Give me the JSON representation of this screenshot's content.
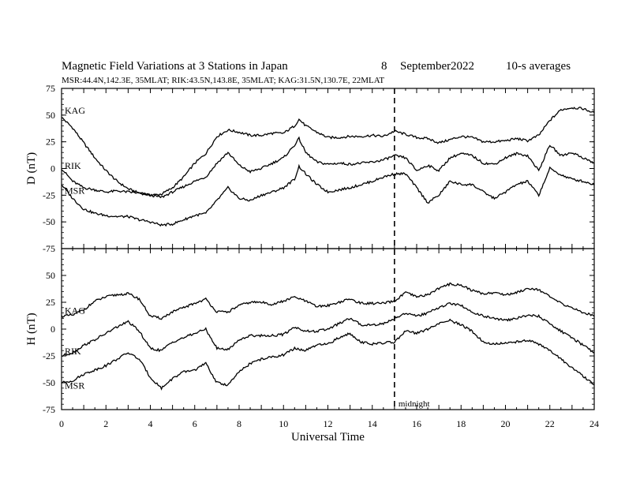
{
  "header": {
    "title": "Magnetic Field Variations at 3 Stations in Japan",
    "day": "8",
    "month": "September",
    "year": "2022",
    "averaging": "10-s averages",
    "stations_line": "MSR:44.4N,142.3E, 35MLAT;  RIK:43.5N,143.8E, 35MLAT;  KAG:31.5N,130.7E, 22MLAT"
  },
  "chart_data": {
    "type": "line",
    "xlabel": "Universal Time",
    "xlim": [
      0,
      24
    ],
    "xticks": [
      0,
      2,
      4,
      6,
      8,
      10,
      12,
      14,
      16,
      18,
      20,
      22,
      24
    ],
    "marker": {
      "x": 15,
      "label": "midnight"
    },
    "panels": [
      {
        "id": "D",
        "ylabel": "D (nT)",
        "ylim": [
          -75,
          75
        ],
        "yticks": [
          75,
          50,
          25,
          0,
          -25,
          -50,
          -75
        ],
        "series": [
          {
            "name": "KAG",
            "label_y": 50,
            "x": [
              0,
              0.5,
              1,
              1.5,
              2,
              2.5,
              3,
              3.5,
              4,
              4.5,
              5,
              5.5,
              6,
              6.5,
              7,
              7.5,
              8,
              8.5,
              9,
              9.5,
              10,
              10.5,
              10.7,
              11,
              11.5,
              12,
              12.5,
              13,
              13.5,
              14,
              14.5,
              15,
              15.5,
              16,
              16.5,
              17,
              17.5,
              18,
              18.5,
              19,
              19.5,
              20,
              20.5,
              21,
              21.5,
              22,
              22.5,
              23,
              23.5,
              24
            ],
            "y": [
              48,
              38,
              24,
              10,
              -2,
              -12,
              -19,
              -23,
              -25,
              -24,
              -18,
              -8,
              5,
              14,
              30,
              36,
              34,
              31,
              31,
              33,
              33,
              40,
              46,
              40,
              34,
              29,
              29,
              30,
              30,
              31,
              30,
              35,
              32,
              29,
              28,
              24,
              27,
              30,
              29,
              25,
              25,
              26,
              28,
              26,
              31,
              45,
              55,
              57,
              56,
              52
            ]
          },
          {
            "name": "RIK",
            "label_y": -2,
            "x": [
              0,
              0.5,
              1,
              1.5,
              2,
              2.5,
              3,
              3.5,
              4,
              4.5,
              5,
              5.5,
              6,
              6.5,
              7,
              7.5,
              8,
              8.5,
              9,
              9.5,
              10,
              10.5,
              10.7,
              11,
              11.5,
              12,
              12.5,
              13,
              13.5,
              14,
              14.5,
              15,
              15.5,
              16,
              16.5,
              17,
              17.5,
              18,
              18.5,
              19,
              19.5,
              20,
              20.5,
              21,
              21.5,
              22,
              22.5,
              23,
              23.5,
              24
            ],
            "y": [
              0,
              -12,
              -18,
              -20,
              -22,
              -21,
              -22,
              -23,
              -25,
              -27,
              -22,
              -17,
              -12,
              -8,
              5,
              15,
              3,
              -3,
              0,
              5,
              10,
              22,
              28,
              15,
              6,
              4,
              5,
              4,
              5,
              6,
              8,
              12,
              10,
              -2,
              3,
              -2,
              10,
              14,
              12,
              5,
              4,
              10,
              14,
              12,
              -2,
              22,
              12,
              15,
              10,
              5
            ]
          },
          {
            "name": "MSR",
            "label_y": -25,
            "x": [
              0,
              0.5,
              1,
              1.5,
              2,
              2.5,
              3,
              3.5,
              4,
              4.5,
              5,
              5.5,
              6,
              6.5,
              7,
              7.5,
              8,
              8.5,
              9,
              9.5,
              10,
              10.5,
              10.7,
              11,
              11.5,
              12,
              12.5,
              13,
              13.5,
              14,
              14.5,
              15,
              15.5,
              16,
              16.5,
              17,
              17.5,
              18,
              18.5,
              19,
              19.5,
              20,
              20.5,
              21,
              21.5,
              22,
              22.5,
              23,
              23.5,
              24
            ],
            "y": [
              -15,
              -28,
              -38,
              -42,
              -44,
              -45,
              -45,
              -48,
              -50,
              -53,
              -52,
              -48,
              -44,
              -42,
              -30,
              -18,
              -28,
              -30,
              -25,
              -22,
              -18,
              -10,
              2,
              -5,
              -15,
              -22,
              -20,
              -18,
              -15,
              -12,
              -8,
              -5,
              -5,
              -18,
              -32,
              -25,
              -12,
              -15,
              -15,
              -22,
              -28,
              -22,
              -15,
              -12,
              -25,
              0,
              -6,
              -10,
              -12,
              -15
            ]
          }
        ]
      },
      {
        "id": "H",
        "ylabel": "H (nT)",
        "ylim": [
          -75,
          75
        ],
        "yticks": [
          75,
          50,
          25,
          0,
          -25,
          -50,
          -75
        ],
        "series": [
          {
            "name": "KAG",
            "label_y": 13,
            "x": [
              0,
              0.5,
              1,
              1.5,
              2,
              2.5,
              3,
              3.5,
              4,
              4.5,
              5,
              5.5,
              6,
              6.5,
              7,
              7.5,
              8,
              8.5,
              9,
              9.5,
              10,
              10.5,
              11,
              11.5,
              12,
              12.5,
              13,
              13.5,
              14,
              14.5,
              15,
              15.5,
              16,
              16.5,
              17,
              17.5,
              18,
              18.5,
              19,
              19.5,
              20,
              20.5,
              21,
              21.5,
              22,
              22.5,
              23,
              23.5,
              24
            ],
            "y": [
              12,
              13,
              18,
              26,
              30,
              32,
              33,
              28,
              12,
              10,
              16,
              20,
              24,
              28,
              16,
              16,
              22,
              25,
              25,
              23,
              26,
              30,
              26,
              21,
              22,
              25,
              28,
              24,
              24,
              24,
              26,
              34,
              30,
              32,
              38,
              42,
              41,
              36,
              33,
              34,
              32,
              34,
              38,
              37,
              30,
              24,
              20,
              15,
              13
            ]
          },
          {
            "name": "RIK",
            "label_y": -25,
            "x": [
              0,
              0.5,
              1,
              1.5,
              2,
              2.5,
              3,
              3.5,
              4,
              4.5,
              5,
              5.5,
              6,
              6.5,
              7,
              7.5,
              8,
              8.5,
              9,
              9.5,
              10,
              10.5,
              11,
              11.5,
              12,
              12.5,
              13,
              13.5,
              14,
              14.5,
              15,
              15.5,
              16,
              16.5,
              17,
              17.5,
              18,
              18.5,
              19,
              19.5,
              20,
              20.5,
              21,
              21.5,
              22,
              22.5,
              23,
              23.5,
              24
            ],
            "y": [
              -25,
              -22,
              -15,
              -10,
              -4,
              2,
              7,
              -2,
              -18,
              -20,
              -12,
              -8,
              -4,
              0,
              -18,
              -19,
              -10,
              -6,
              -6,
              -6,
              -5,
              2,
              -2,
              -2,
              0,
              5,
              10,
              4,
              4,
              5,
              10,
              15,
              12,
              15,
              20,
              24,
              22,
              16,
              12,
              10,
              8,
              10,
              13,
              12,
              5,
              -2,
              -8,
              -15,
              -22
            ]
          },
          {
            "name": "MSR",
            "label_y": -57,
            "x": [
              0,
              0.5,
              1,
              1.5,
              2,
              2.5,
              3,
              3.5,
              4,
              4.5,
              5,
              5.5,
              6,
              6.5,
              7,
              7.5,
              8,
              8.5,
              9,
              9.5,
              10,
              10.5,
              11,
              11.5,
              12,
              12.5,
              13,
              13.5,
              14,
              14.5,
              15,
              15.5,
              16,
              16.5,
              17,
              17.5,
              18,
              18.5,
              19,
              19.5,
              20,
              20.5,
              21,
              21.5,
              22,
              22.5,
              23,
              23.5,
              24
            ],
            "y": [
              -50,
              -48,
              -42,
              -38,
              -34,
              -28,
              -22,
              -28,
              -45,
              -55,
              -46,
              -40,
              -38,
              -32,
              -50,
              -52,
              -40,
              -32,
              -28,
              -26,
              -24,
              -18,
              -20,
              -15,
              -14,
              -8,
              -4,
              -12,
              -14,
              -13,
              -12,
              -2,
              -4,
              0,
              5,
              8,
              4,
              -2,
              -12,
              -14,
              -13,
              -12,
              -10,
              -14,
              -20,
              -28,
              -36,
              -44,
              -52
            ]
          }
        ]
      }
    ]
  }
}
